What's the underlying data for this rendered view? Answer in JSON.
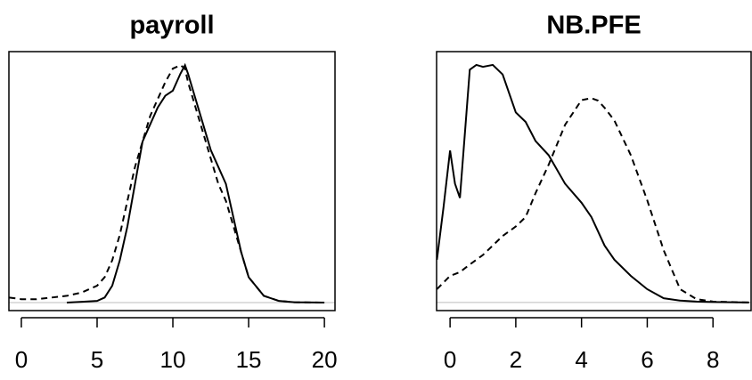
{
  "chart_data": [
    {
      "type": "line",
      "title": "payroll",
      "x": [
        -0.8,
        0,
        1,
        2,
        3,
        4,
        5,
        5.5,
        6,
        6.5,
        7,
        7.5,
        8,
        8.5,
        9,
        9.5,
        10,
        10.5,
        10.8,
        11,
        11.5,
        12,
        12.5,
        13,
        13.5,
        14,
        14.5,
        15,
        16,
        17,
        18,
        20
      ],
      "series": [
        {
          "color": "#000000",
          "linestyle": "solid",
          "values": [
            null,
            null,
            null,
            null,
            0,
            0.0005,
            0.001,
            0.003,
            0.01,
            0.025,
            0.045,
            0.07,
            0.095,
            0.105,
            0.115,
            0.122,
            0.125,
            0.135,
            0.14,
            0.135,
            0.12,
            0.105,
            0.09,
            0.08,
            0.07,
            0.05,
            0.03,
            0.015,
            0.004,
            0.001,
            0.0002,
            0
          ]
        },
        {
          "color": "#000000",
          "linestyle": "dashed",
          "values": [
            0.003,
            0.002,
            0.002,
            0.003,
            0.004,
            0.006,
            0.01,
            0.015,
            0.025,
            0.04,
            0.06,
            0.08,
            0.095,
            0.11,
            0.12,
            0.13,
            0.138,
            0.14,
            0.138,
            0.13,
            0.115,
            0.1,
            0.085,
            0.07,
            0.06,
            0.045,
            0.03,
            0.015,
            0.004,
            0.001,
            0.0002,
            0
          ]
        }
      ],
      "xlim": [
        -0.82,
        20.7
      ],
      "xticks": [
        0,
        5,
        10,
        15,
        20
      ],
      "ylim": [
        -0.0047,
        0.148
      ],
      "zero_line": true
    },
    {
      "type": "line",
      "title": "NB.PFE",
      "x": [
        -0.4,
        -0.2,
        0,
        0.15,
        0.3,
        0.6,
        0.8,
        1,
        1.3,
        1.6,
        2,
        2.3,
        2.6,
        3,
        3.5,
        4,
        4.3,
        4.5,
        4.7,
        5,
        5.5,
        6,
        6.5,
        7,
        7.5,
        8,
        9.1
      ],
      "series": [
        {
          "color": "#000000",
          "linestyle": "solid",
          "values": [
            0.09,
            0.2,
            0.32,
            0.25,
            0.22,
            0.49,
            0.5,
            0.496,
            0.5,
            0.48,
            0.4,
            0.38,
            0.34,
            0.31,
            0.25,
            0.21,
            0.18,
            0.15,
            0.12,
            0.09,
            0.056,
            0.028,
            0.009,
            0.004,
            0.002,
            0.001,
            0
          ]
        },
        {
          "color": "#000000",
          "linestyle": "dashed",
          "values": [
            0.028,
            0.042,
            0.056,
            0.06,
            0.064,
            0.08,
            0.09,
            0.1,
            0.12,
            0.14,
            0.16,
            0.18,
            0.23,
            0.29,
            0.374,
            0.426,
            0.43,
            0.425,
            0.41,
            0.383,
            0.31,
            0.215,
            0.11,
            0.028,
            0.007,
            0.002,
            0
          ]
        }
      ],
      "xlim": [
        -0.41,
        9.16
      ],
      "xticks": [
        0,
        2,
        4,
        6,
        8
      ],
      "ylim": [
        -0.017,
        0.528
      ],
      "zero_line": true
    }
  ]
}
